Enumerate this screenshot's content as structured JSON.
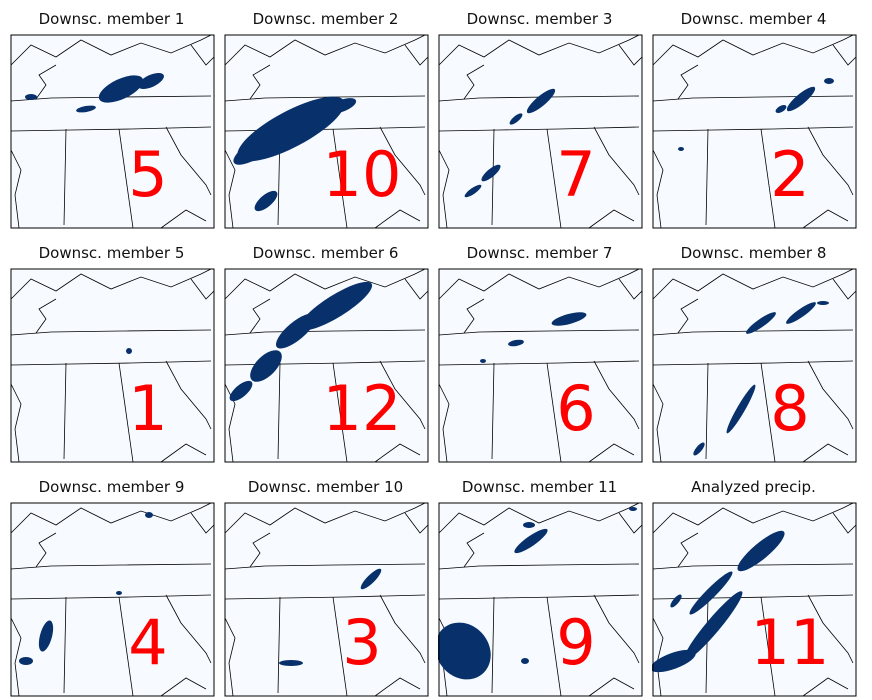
{
  "colors": {
    "background": "#f7fbff",
    "precip": "#08306b",
    "border": "#000000",
    "rank": "#ff0000"
  },
  "panels": [
    {
      "title": "Downsc. member 1",
      "rank": "5"
    },
    {
      "title": "Downsc. member 2",
      "rank": "10"
    },
    {
      "title": "Downsc. member 3",
      "rank": "7"
    },
    {
      "title": "Downsc. member 4",
      "rank": "2"
    },
    {
      "title": "Downsc. member 5",
      "rank": "1"
    },
    {
      "title": "Downsc. member 6",
      "rank": "12"
    },
    {
      "title": "Downsc. member 7",
      "rank": "6"
    },
    {
      "title": "Downsc. member 8",
      "rank": "8"
    },
    {
      "title": "Downsc. member 9",
      "rank": "4"
    },
    {
      "title": "Downsc. member 10",
      "rank": "3"
    },
    {
      "title": "Downsc. member 11",
      "rank": "9"
    },
    {
      "title": "Analyzed precip.",
      "rank": "11"
    }
  ]
}
